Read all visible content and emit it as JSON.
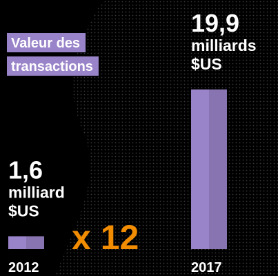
{
  "chart_data": {
    "type": "bar",
    "title": [
      "Valeur des",
      "transactions"
    ],
    "categories": [
      "2012",
      "2017"
    ],
    "values": [
      1.6,
      19.9
    ],
    "value_labels": [
      "1,6",
      "19,9"
    ],
    "unit_labels": [
      [
        "milliard",
        "$US"
      ],
      [
        "milliards",
        "$US"
      ]
    ],
    "annotation": "x 12",
    "color": "#9a84c9"
  }
}
